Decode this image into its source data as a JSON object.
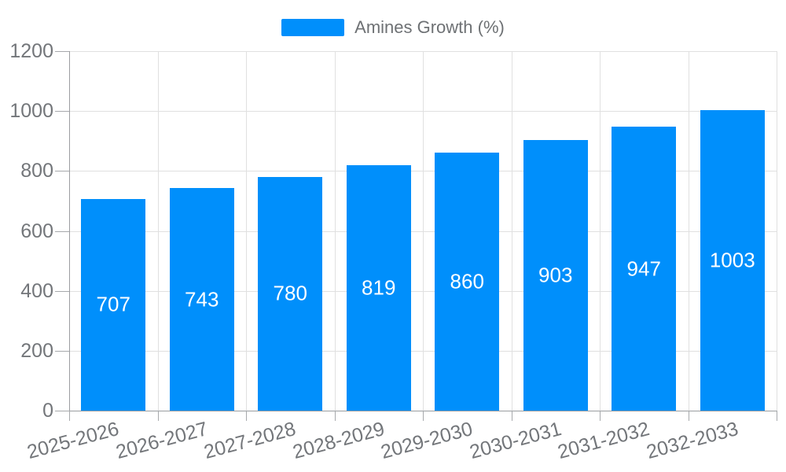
{
  "chart_data": {
    "type": "bar",
    "title": "",
    "legend": "Amines Growth (%)",
    "legend_position": "top",
    "categories": [
      "2025-2026",
      "2026-2027",
      "2027-2028",
      "2028-2029",
      "2029-2030",
      "2030-2031",
      "2031-2032",
      "2032-2033"
    ],
    "series": [
      {
        "name": "Amines Growth (%)",
        "values": [
          707,
          743,
          780,
          819,
          860,
          903,
          947,
          1003
        ]
      }
    ],
    "data_labels": [
      "707",
      "743",
      "780",
      "819",
      "860",
      "903",
      "947",
      "1003"
    ],
    "xlabel": "",
    "ylabel": "",
    "ylim": [
      0,
      1200
    ],
    "yticks": [
      0,
      200,
      400,
      600,
      800,
      1000,
      1200
    ],
    "ytick_labels": [
      "0",
      "200",
      "400",
      "600",
      "800",
      "1000",
      "1200"
    ],
    "grid": true,
    "colors": {
      "bar": "#008FFB",
      "grid": "#e0e0e0",
      "axis_line": "#9b9da0",
      "tick": "#a7a9ac",
      "axis_text": "#73767a",
      "legend_text": "#6e7174",
      "data_label_text": "#ffffff",
      "background": "#ffffff"
    }
  }
}
